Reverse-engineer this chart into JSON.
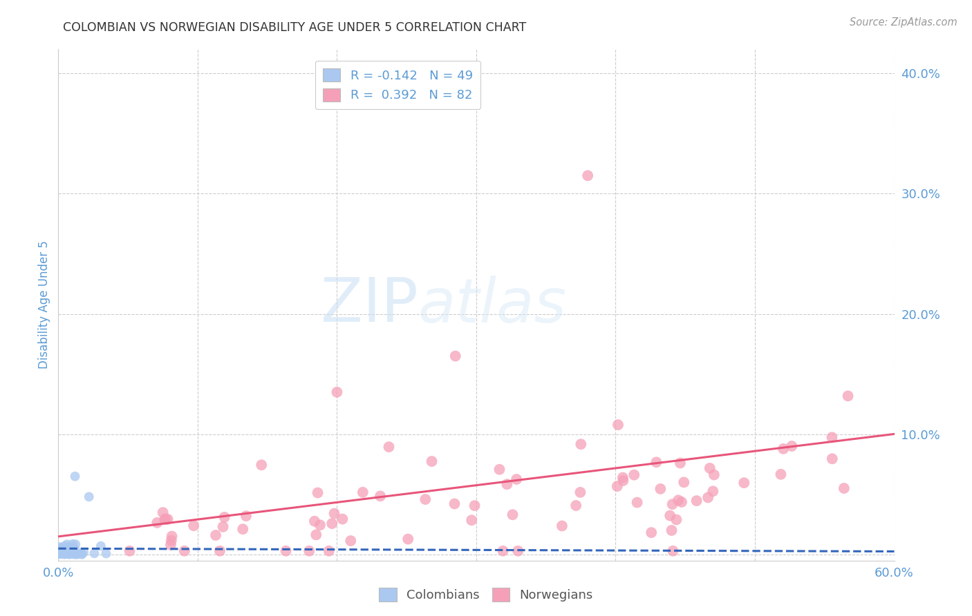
{
  "title": "COLOMBIAN VS NORWEGIAN DISABILITY AGE UNDER 5 CORRELATION CHART",
  "source": "Source: ZipAtlas.com",
  "ylabel": "Disability Age Under 5",
  "xlim": [
    0.0,
    0.6
  ],
  "ylim": [
    -0.005,
    0.42
  ],
  "colombian_color": "#aac8f0",
  "norwegian_color": "#f5a0b8",
  "colombian_line_color": "#3366bb",
  "norwegian_line_color": "#e8557a",
  "background_color": "#ffffff",
  "watermark_zip": "ZIP",
  "watermark_atlas": "atlas",
  "title_fontsize": 12.5,
  "axis_label_color": "#5b9bd5",
  "tick_color": "#5b9bd5",
  "grid_color": "#cccccc",
  "col_R": "-0.142",
  "col_N": "49",
  "nor_R": "0.392",
  "nor_N": "82"
}
